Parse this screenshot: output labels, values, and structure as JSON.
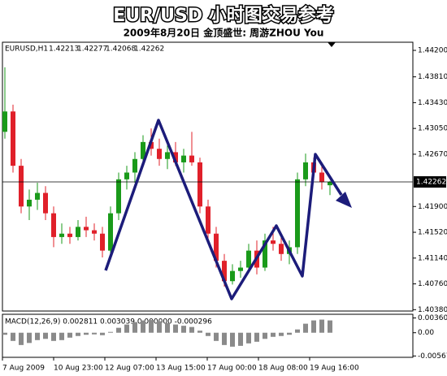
{
  "chart_data": {
    "type": "candlestick",
    "title": "EUR/USD 小时图交易参考",
    "subtitle": "2009年8月20日 金顶盛世: 周游ZHOU You",
    "symbol": "EURUSD,H1",
    "ylim": [
      1.4036,
      1.4432
    ],
    "yticks": [
      {
        "value": 1.442,
        "label": "1.44200"
      },
      {
        "value": 1.4381,
        "label": "1.43810"
      },
      {
        "value": 1.4343,
        "label": "1.43430"
      },
      {
        "value": 1.4305,
        "label": "1.43050"
      },
      {
        "value": 1.4267,
        "label": "1.42670"
      },
      {
        "value": 1.419,
        "label": "1.41900"
      },
      {
        "value": 1.4152,
        "label": "1.41520"
      },
      {
        "value": 1.4114,
        "label": "1.41140"
      },
      {
        "value": 1.4076,
        "label": "1.40760"
      },
      {
        "value": 1.4038,
        "label": "1.40380"
      }
    ],
    "last_price": {
      "value": 1.42262,
      "label": "1.42262"
    },
    "x_labels": [
      "7 Aug 2009",
      "10 Aug 23:00",
      "12 Aug 07:00",
      "13 Aug 15:00",
      "17 Aug 00:00",
      "18 Aug 08:00",
      "19 Aug 16:00"
    ],
    "up_color": "#1a9a1a",
    "down_color": "#e0202a",
    "open": [
      1.43,
      1.433,
      1.425,
      1.419,
      1.42,
      1.421,
      1.418,
      1.4145,
      1.415,
      1.4145,
      1.416,
      1.4155,
      1.415,
      1.4125,
      1.418,
      1.423,
      1.424,
      1.426,
      1.4285,
      1.4275,
      1.426,
      1.427,
      1.4255,
      1.4265,
      1.4255,
      1.419,
      1.415,
      1.411,
      1.408,
      1.4095,
      1.41,
      1.4125,
      1.41,
      1.414,
      1.4135,
      1.412,
      1.413,
      1.423,
      1.4255,
      1.424,
      1.42213
    ],
    "high": [
      1.4395,
      1.434,
      1.426,
      1.4215,
      1.4225,
      1.422,
      1.419,
      1.4165,
      1.416,
      1.417,
      1.4175,
      1.4165,
      1.416,
      1.419,
      1.424,
      1.425,
      1.427,
      1.4295,
      1.4305,
      1.429,
      1.428,
      1.4285,
      1.4275,
      1.43,
      1.4262,
      1.42,
      1.416,
      1.412,
      1.4105,
      1.411,
      1.4135,
      1.414,
      1.415,
      1.416,
      1.415,
      1.414,
      1.424,
      1.4268,
      1.4262,
      1.4255,
      1.42277
    ],
    "low": [
      1.429,
      1.424,
      1.418,
      1.417,
      1.4185,
      1.417,
      1.413,
      1.4135,
      1.4135,
      1.414,
      1.4145,
      1.414,
      1.4115,
      1.4118,
      1.417,
      1.4215,
      1.4225,
      1.425,
      1.4265,
      1.425,
      1.4245,
      1.425,
      1.424,
      1.425,
      1.418,
      1.414,
      1.41,
      1.4072,
      1.4075,
      1.4085,
      1.4095,
      1.409,
      1.4095,
      1.4125,
      1.411,
      1.4105,
      1.412,
      1.422,
      1.423,
      1.4215,
      1.42068
    ],
    "close": [
      1.433,
      1.425,
      1.419,
      1.42,
      1.421,
      1.418,
      1.4145,
      1.415,
      1.4145,
      1.416,
      1.4155,
      1.415,
      1.4125,
      1.418,
      1.423,
      1.424,
      1.426,
      1.4285,
      1.4275,
      1.426,
      1.427,
      1.4255,
      1.4265,
      1.4255,
      1.419,
      1.415,
      1.411,
      1.408,
      1.4095,
      1.41,
      1.4125,
      1.41,
      1.414,
      1.4135,
      1.412,
      1.413,
      1.423,
      1.4255,
      1.424,
      1.4226,
      1.42262
    ],
    "macd": {
      "label": "MACD(12,26,9) 0.002811 0.003039 0.000000 -0.000296",
      "ylim": [
        -0.006,
        0.0045
      ],
      "yticks": [
        0.003602,
        {
          "value": 0,
          "label": "0.00"
        },
        -0.00567
      ],
      "color": "#8a8a8a",
      "values": [
        -0.0005,
        -0.002,
        -0.003,
        -0.0025,
        -0.0018,
        -0.0015,
        -0.002,
        -0.0018,
        -0.0012,
        -0.0008,
        -0.0005,
        -0.0004,
        -0.0006,
        0.0002,
        0.0012,
        0.002,
        0.0026,
        0.003,
        0.0031,
        0.0028,
        0.0024,
        0.002,
        0.0017,
        0.0014,
        0.0005,
        -0.0008,
        -0.002,
        -0.003,
        -0.0034,
        -0.0032,
        -0.0026,
        -0.0022,
        -0.0015,
        -0.001,
        -0.0008,
        -0.0005,
        0.0008,
        0.0022,
        0.003,
        0.0032,
        0.003
      ]
    }
  }
}
